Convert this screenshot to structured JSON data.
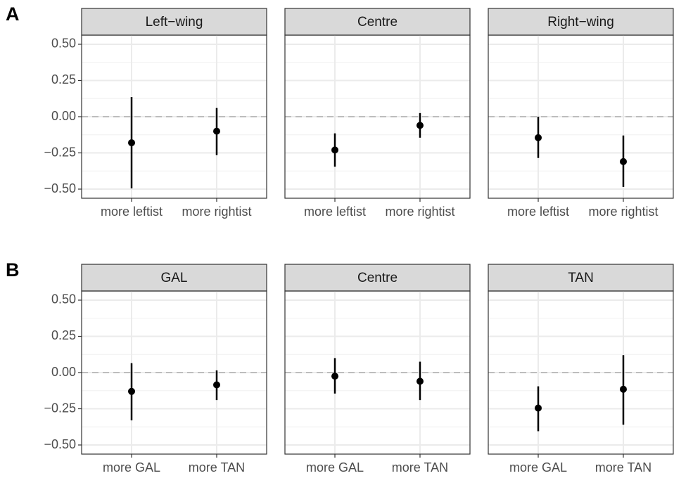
{
  "chart_data": [
    {
      "type": "pointrange",
      "panel_label": "A",
      "title": "Left−wing",
      "categories": [
        "more leftist",
        "more rightist"
      ],
      "values": [
        -0.18,
        -0.1
      ],
      "lower": [
        -0.495,
        -0.265
      ],
      "upper": [
        0.136,
        0.06
      ],
      "ylim": [
        -0.563,
        0.563
      ],
      "yticks": [
        {
          "value": 0.5,
          "label": "0.50"
        },
        {
          "value": 0.25,
          "label": "0.25"
        },
        {
          "value": 0,
          "label": "0.00"
        },
        {
          "value": -0.25,
          "label": "−0.25"
        },
        {
          "value": -0.5,
          "label": "−0.50"
        }
      ],
      "hline": 0,
      "grid": true,
      "color": "#000000"
    },
    {
      "type": "pointrange",
      "title": "Centre",
      "categories": [
        "more leftist",
        "more rightist"
      ],
      "values": [
        -0.23,
        -0.06
      ],
      "lower": [
        -0.345,
        -0.145
      ],
      "upper": [
        -0.115,
        0.025
      ],
      "ylim": [
        -0.563,
        0.563
      ],
      "yticks": [
        0.5,
        0.25,
        0,
        -0.25,
        -0.5
      ],
      "hline": 0,
      "grid": true,
      "color": "#000000"
    },
    {
      "type": "pointrange",
      "title": "Right−wing",
      "categories": [
        "more leftist",
        "more rightist"
      ],
      "values": [
        -0.145,
        -0.31
      ],
      "lower": [
        -0.285,
        -0.485
      ],
      "upper": [
        0.0,
        -0.13
      ],
      "ylim": [
        -0.563,
        0.563
      ],
      "yticks": [
        0.5,
        0.25,
        0,
        -0.25,
        -0.5
      ],
      "hline": 0,
      "grid": true,
      "color": "#000000"
    },
    {
      "type": "pointrange",
      "panel_label": "B",
      "title": "GAL",
      "categories": [
        "more GAL",
        "more TAN"
      ],
      "values": [
        -0.13,
        -0.085
      ],
      "lower": [
        -0.33,
        -0.19
      ],
      "upper": [
        0.065,
        0.015
      ],
      "ylim": [
        -0.563,
        0.563
      ],
      "yticks": [
        {
          "value": 0.5,
          "label": "0.50"
        },
        {
          "value": 0.25,
          "label": "0.25"
        },
        {
          "value": 0,
          "label": "0.00"
        },
        {
          "value": -0.25,
          "label": "−0.25"
        },
        {
          "value": -0.5,
          "label": "−0.50"
        }
      ],
      "hline": 0,
      "grid": true,
      "color": "#000000"
    },
    {
      "type": "pointrange",
      "title": "Centre",
      "categories": [
        "more GAL",
        "more TAN"
      ],
      "values": [
        -0.025,
        -0.06
      ],
      "lower": [
        -0.145,
        -0.19
      ],
      "upper": [
        0.1,
        0.075
      ],
      "ylim": [
        -0.563,
        0.563
      ],
      "yticks": [
        0.5,
        0.25,
        0,
        -0.25,
        -0.5
      ],
      "hline": 0,
      "grid": true,
      "color": "#000000"
    },
    {
      "type": "pointrange",
      "title": "TAN",
      "categories": [
        "more GAL",
        "more TAN"
      ],
      "values": [
        -0.245,
        -0.115
      ],
      "lower": [
        -0.405,
        -0.36
      ],
      "upper": [
        -0.095,
        0.12
      ],
      "ylim": [
        -0.563,
        0.563
      ],
      "yticks": [
        0.5,
        0.25,
        0,
        -0.25,
        -0.5
      ],
      "hline": 0,
      "grid": true,
      "color": "#000000"
    }
  ]
}
